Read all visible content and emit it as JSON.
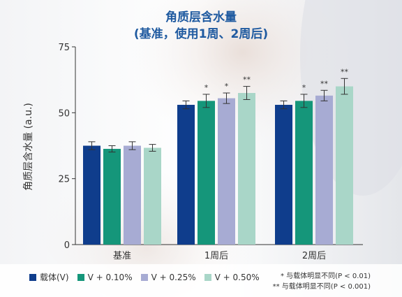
{
  "title_line1": "角质层含水量",
  "title_line2": "(基准，使用1周、2周后)",
  "notes": [
    "* 与载体明显不同(P < 0.01)",
    "** 与载体明显不同(P < 0.001)"
  ],
  "colors": {
    "title": "#1f5aa0",
    "series": [
      "#0f3d8c",
      "#15967a",
      "#a7abd3",
      "#a9d6c8"
    ]
  },
  "chart_data": {
    "type": "bar",
    "categories": [
      "基准",
      "1周后",
      "2周后"
    ],
    "ylabel": "角质层含水量 (a.u.)",
    "ylim": [
      0,
      75
    ],
    "yticks": [
      0,
      25,
      50,
      75
    ],
    "grid": false,
    "legend_position": "bottom-left",
    "series": [
      {
        "name": "载体(V)",
        "values": [
          37.5,
          53.0,
          53.0
        ],
        "errors": [
          1.5,
          1.5,
          1.5
        ],
        "sig": [
          "",
          "",
          ""
        ]
      },
      {
        "name": "V + 0.10%",
        "values": [
          36.3,
          54.5,
          54.5
        ],
        "errors": [
          1.2,
          2.5,
          2.5
        ],
        "sig": [
          "",
          "*",
          "*"
        ]
      },
      {
        "name": "V + 0.25%",
        "values": [
          37.5,
          55.5,
          56.5
        ],
        "errors": [
          1.5,
          2.0,
          2.0
        ],
        "sig": [
          "",
          "*",
          "**"
        ]
      },
      {
        "name": "V + 0.50%",
        "values": [
          36.7,
          57.5,
          60.0
        ],
        "errors": [
          1.3,
          2.5,
          3.0
        ],
        "sig": [
          "",
          "**",
          "**"
        ]
      }
    ]
  }
}
